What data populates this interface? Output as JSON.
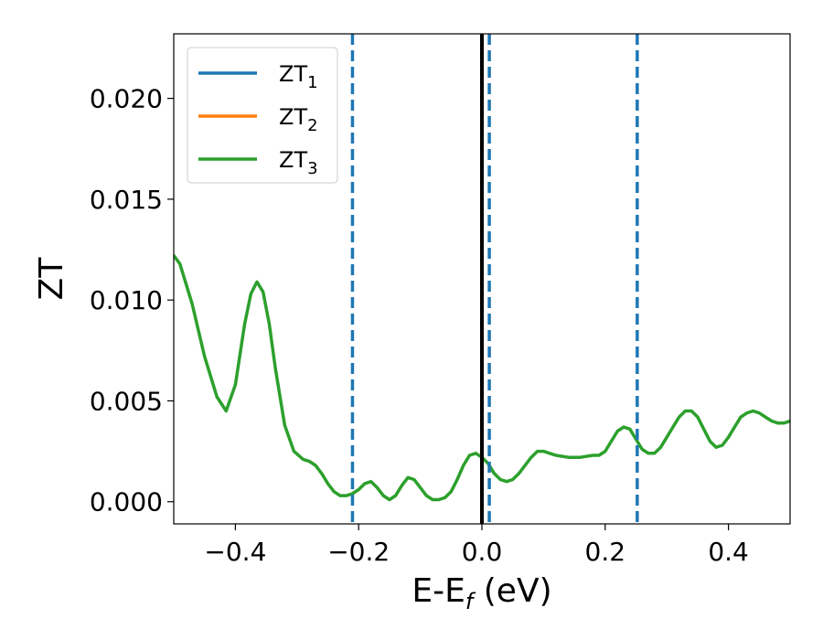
{
  "chart_data": {
    "type": "line",
    "xlabel": {
      "main": "E-E",
      "sub": "f",
      "suffix": " (eV)"
    },
    "ylabel": "ZT",
    "xlim": [
      -0.5,
      0.5
    ],
    "ylim": [
      -0.0011,
      0.0232
    ],
    "xticks": [
      -0.4,
      -0.2,
      0.0,
      0.2,
      0.4
    ],
    "xtick_labels": [
      "−0.4",
      "−0.2",
      "0.0",
      "0.2",
      "0.4"
    ],
    "yticks": [
      0.0,
      0.005,
      0.01,
      0.015,
      0.02
    ],
    "ytick_labels": [
      "0.000",
      "0.005",
      "0.010",
      "0.015",
      "0.020"
    ],
    "grid": false,
    "legend_position": "top-left",
    "series": [
      {
        "name": "ZT",
        "name_sub": "1",
        "color": "#1f77b4"
      },
      {
        "name": "ZT",
        "name_sub": "2",
        "color": "#ff7f0e"
      },
      {
        "name": "ZT",
        "name_sub": "3",
        "color": "#2ca02c",
        "x": [
          -0.5,
          -0.49,
          -0.47,
          -0.45,
          -0.43,
          -0.415,
          -0.4,
          -0.385,
          -0.375,
          -0.365,
          -0.355,
          -0.345,
          -0.335,
          -0.32,
          -0.305,
          -0.29,
          -0.28,
          -0.27,
          -0.26,
          -0.25,
          -0.24,
          -0.23,
          -0.22,
          -0.21,
          -0.2,
          -0.19,
          -0.18,
          -0.17,
          -0.16,
          -0.15,
          -0.14,
          -0.13,
          -0.12,
          -0.11,
          -0.1,
          -0.09,
          -0.08,
          -0.07,
          -0.06,
          -0.05,
          -0.04,
          -0.03,
          -0.02,
          -0.01,
          0.0,
          0.01,
          0.02,
          0.03,
          0.04,
          0.05,
          0.06,
          0.07,
          0.08,
          0.09,
          0.1,
          0.11,
          0.12,
          0.14,
          0.16,
          0.18,
          0.19,
          0.2,
          0.21,
          0.22,
          0.23,
          0.24,
          0.25,
          0.26,
          0.27,
          0.28,
          0.29,
          0.3,
          0.31,
          0.32,
          0.33,
          0.34,
          0.35,
          0.36,
          0.37,
          0.38,
          0.39,
          0.4,
          0.41,
          0.42,
          0.43,
          0.44,
          0.45,
          0.46,
          0.47,
          0.48,
          0.49,
          0.5
        ],
        "y": [
          0.0122,
          0.0118,
          0.0098,
          0.0072,
          0.0052,
          0.0045,
          0.0058,
          0.0088,
          0.0103,
          0.0109,
          0.0104,
          0.0088,
          0.0066,
          0.0038,
          0.0025,
          0.0021,
          0.002,
          0.0018,
          0.0014,
          0.0009,
          0.0005,
          0.0003,
          0.0003,
          0.0004,
          0.0006,
          0.0009,
          0.001,
          0.0007,
          0.0003,
          0.0001,
          0.0003,
          0.0008,
          0.0012,
          0.0011,
          0.0007,
          0.0003,
          0.0001,
          0.0001,
          0.0002,
          0.0005,
          0.0011,
          0.0018,
          0.0023,
          0.0024,
          0.0022,
          0.0019,
          0.0014,
          0.0011,
          0.001,
          0.0011,
          0.0014,
          0.0018,
          0.0022,
          0.0025,
          0.0025,
          0.0024,
          0.0023,
          0.0022,
          0.0022,
          0.0023,
          0.0023,
          0.0025,
          0.003,
          0.0035,
          0.0037,
          0.0036,
          0.0031,
          0.0026,
          0.0024,
          0.0024,
          0.0027,
          0.0032,
          0.0037,
          0.0042,
          0.0045,
          0.0045,
          0.0042,
          0.0036,
          0.003,
          0.0027,
          0.0028,
          0.0032,
          0.0037,
          0.0042,
          0.0044,
          0.0045,
          0.0044,
          0.0042,
          0.004,
          0.0039,
          0.0039,
          0.004
        ]
      }
    ],
    "vlines": [
      {
        "x": 0.0,
        "color": "#000000",
        "style": "solid"
      },
      {
        "x": -0.21,
        "color": "#1f77b4",
        "style": "dashed"
      },
      {
        "x": 0.012,
        "color": "#1f77b4",
        "style": "dashed"
      },
      {
        "x": 0.252,
        "color": "#1f77b4",
        "style": "dashed"
      }
    ]
  }
}
